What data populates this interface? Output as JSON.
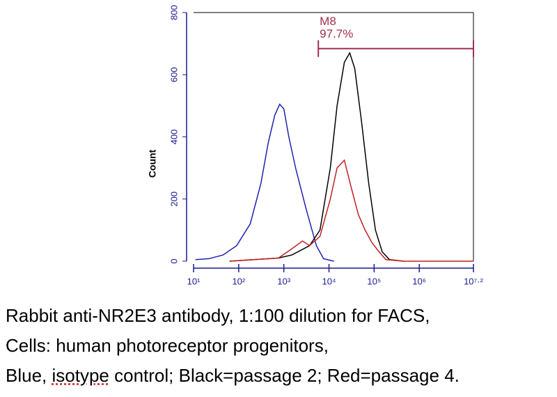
{
  "chart_data": {
    "type": "line",
    "y_label": "Count",
    "xscale": "log",
    "xlim": [
      10,
      15848931.92
    ],
    "xticks": [
      {
        "value": 10,
        "label": "10¹"
      },
      {
        "value": 100,
        "label": "10²"
      },
      {
        "value": 1000,
        "label": "10³"
      },
      {
        "value": 10000,
        "label": "10⁴"
      },
      {
        "value": 100000,
        "label": "10⁵"
      },
      {
        "value": 1000000,
        "label": "10⁶"
      },
      {
        "value": 15848931.92,
        "label": "10⁷·²"
      }
    ],
    "ylim": [
      0,
      800
    ],
    "yticks": [
      0,
      200,
      400,
      600,
      800
    ],
    "gate": {
      "label": "M8",
      "percent": "97.7%",
      "range": [
        5800,
        15848931.92
      ],
      "level": 684,
      "color": "#a0304a"
    },
    "series": [
      {
        "color": "#2020b0",
        "x": [
          11,
          22,
          45,
          90,
          180,
          310,
          450,
          630,
          810,
          1000,
          1290,
          1820,
          3090,
          5250,
          7590,
          12900
        ],
        "values": [
          5,
          8,
          20,
          50,
          120,
          250,
          380,
          470,
          505,
          490,
          400,
          300,
          170,
          50,
          8,
          0
        ]
      },
      {
        "color": "#000000",
        "x": [
          63,
          759,
          1510,
          3720,
          6310,
          10700,
          15100,
          21900,
          28800,
          37200,
          52500,
          75900,
          107000,
          151000,
          219000,
          447000
        ],
        "values": [
          0,
          10,
          20,
          50,
          100,
          300,
          500,
          640,
          670,
          620,
          450,
          250,
          100,
          30,
          5,
          0
        ]
      },
      {
        "color": "#c02020",
        "x": [
          63,
          759,
          1510,
          2600,
          3720,
          6310,
          10700,
          15100,
          21900,
          30700,
          44700,
          63100,
          89100,
          129000,
          182000,
          447000,
          15848931.92
        ],
        "values": [
          0,
          10,
          40,
          65,
          50,
          80,
          200,
          300,
          325,
          240,
          150,
          100,
          60,
          30,
          5,
          0,
          0
        ]
      }
    ]
  },
  "caption": [
    "Rabbit anti-NR2E3 antibody, 1:100 dilution for FACS,",
    "Cells: human photoreceptor progenitors,"
  ],
  "caption_last": {
    "before": "Blue, ",
    "underlined": "isotype",
    "after": " control; Black=passage 2; Red=passage 4."
  }
}
